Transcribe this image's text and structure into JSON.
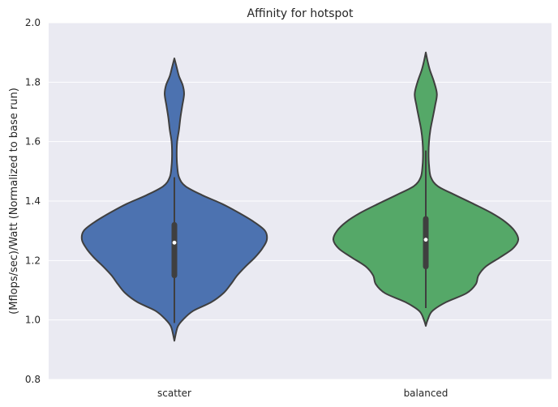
{
  "chart_data": {
    "type": "violin",
    "title": "Affinity for hotspot",
    "xlabel": "",
    "ylabel": "(Mflops/sec)/Watt (Normalized to base run)",
    "ylim": [
      0.8,
      2.0
    ],
    "yticks": [
      0.8,
      1.0,
      1.2,
      1.4,
      1.6,
      1.8,
      2.0
    ],
    "ytick_labels": [
      "0.8",
      "1.0",
      "1.2",
      "1.4",
      "1.6",
      "1.8",
      "2.0"
    ],
    "grid": true,
    "categories": [
      "scatter",
      "balanced"
    ],
    "series": [
      {
        "name": "scatter",
        "color": "#4c72b0",
        "min": 0.93,
        "max": 1.88,
        "whisker_low": 0.99,
        "whisker_high": 1.48,
        "q1": 1.15,
        "median": 1.26,
        "q3": 1.32,
        "density": [
          [
            0.93,
            0.0
          ],
          [
            0.96,
            0.02
          ],
          [
            0.98,
            0.04
          ],
          [
            1.0,
            0.09
          ],
          [
            1.03,
            0.2
          ],
          [
            1.06,
            0.4
          ],
          [
            1.09,
            0.53
          ],
          [
            1.12,
            0.61
          ],
          [
            1.15,
            0.68
          ],
          [
            1.18,
            0.77
          ],
          [
            1.21,
            0.87
          ],
          [
            1.24,
            0.95
          ],
          [
            1.27,
            1.0
          ],
          [
            1.3,
            0.98
          ],
          [
            1.33,
            0.86
          ],
          [
            1.36,
            0.7
          ],
          [
            1.39,
            0.52
          ],
          [
            1.42,
            0.3
          ],
          [
            1.45,
            0.12
          ],
          [
            1.48,
            0.05
          ],
          [
            1.52,
            0.03
          ],
          [
            1.56,
            0.025
          ],
          [
            1.6,
            0.03
          ],
          [
            1.64,
            0.05
          ],
          [
            1.68,
            0.065
          ],
          [
            1.72,
            0.085
          ],
          [
            1.76,
            0.105
          ],
          [
            1.79,
            0.09
          ],
          [
            1.82,
            0.05
          ],
          [
            1.85,
            0.025
          ],
          [
            1.88,
            0.0
          ]
        ]
      },
      {
        "name": "balanced",
        "color": "#55a868",
        "min": 0.98,
        "max": 1.9,
        "whisker_low": 1.04,
        "whisker_high": 1.57,
        "q1": 1.18,
        "median": 1.27,
        "q3": 1.34,
        "density": [
          [
            0.98,
            0.0
          ],
          [
            1.0,
            0.02
          ],
          [
            1.03,
            0.07
          ],
          [
            1.06,
            0.22
          ],
          [
            1.09,
            0.44
          ],
          [
            1.12,
            0.54
          ],
          [
            1.15,
            0.57
          ],
          [
            1.18,
            0.65
          ],
          [
            1.21,
            0.8
          ],
          [
            1.24,
            0.94
          ],
          [
            1.27,
            1.0
          ],
          [
            1.3,
            0.96
          ],
          [
            1.33,
            0.86
          ],
          [
            1.36,
            0.71
          ],
          [
            1.39,
            0.52
          ],
          [
            1.42,
            0.32
          ],
          [
            1.45,
            0.13
          ],
          [
            1.48,
            0.055
          ],
          [
            1.52,
            0.035
          ],
          [
            1.56,
            0.03
          ],
          [
            1.6,
            0.035
          ],
          [
            1.64,
            0.05
          ],
          [
            1.68,
            0.075
          ],
          [
            1.72,
            0.1
          ],
          [
            1.76,
            0.12
          ],
          [
            1.8,
            0.09
          ],
          [
            1.84,
            0.045
          ],
          [
            1.87,
            0.02
          ],
          [
            1.9,
            0.0
          ]
        ]
      }
    ]
  }
}
